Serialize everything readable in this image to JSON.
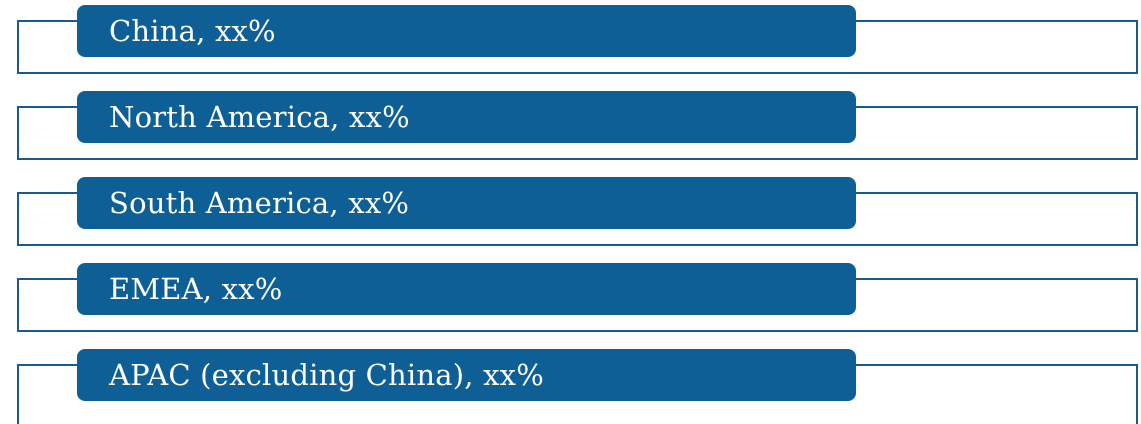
{
  "regions": [
    {
      "label": "China, xx%"
    },
    {
      "label": "North America, xx%"
    },
    {
      "label": "South America, xx%"
    },
    {
      "label": "EMEA, xx%"
    },
    {
      "label": " APAC (excluding China), xx%"
    }
  ]
}
